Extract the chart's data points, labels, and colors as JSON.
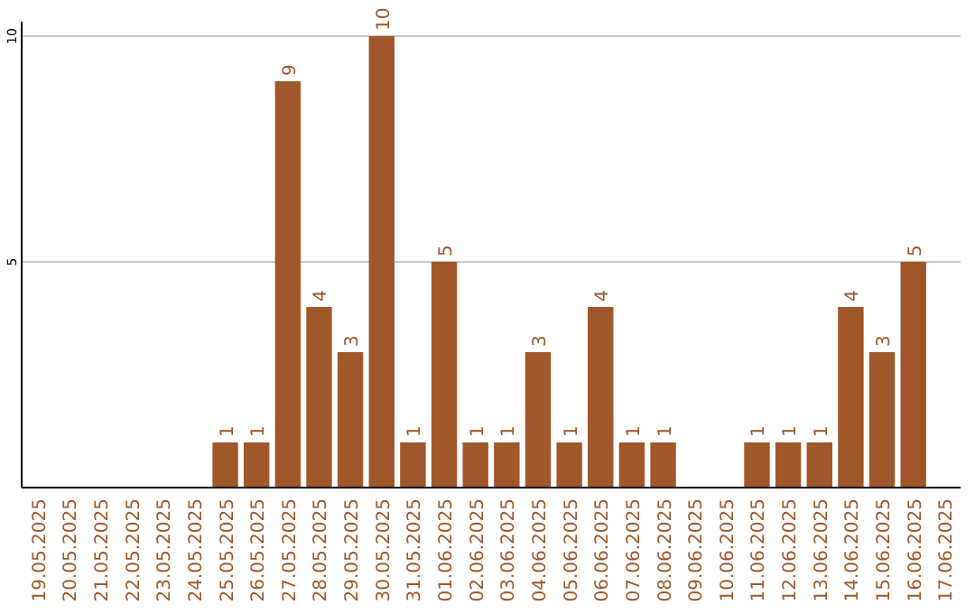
{
  "chart_data": {
    "type": "bar",
    "categories": [
      "19.05.2025",
      "20.05.2025",
      "21.05.2025",
      "22.05.2025",
      "23.05.2025",
      "24.05.2025",
      "25.05.2025",
      "26.05.2025",
      "27.05.2025",
      "28.05.2025",
      "29.05.2025",
      "30.05.2025",
      "31.05.2025",
      "01.06.2025",
      "02.06.2025",
      "03.06.2025",
      "04.06.2025",
      "05.06.2025",
      "06.06.2025",
      "07.06.2025",
      "08.06.2025",
      "09.06.2025",
      "10.06.2025",
      "11.06.2025",
      "12.06.2025",
      "13.06.2025",
      "14.06.2025",
      "15.06.2025",
      "16.06.2025",
      "17.06.2025"
    ],
    "values": [
      0,
      0,
      0,
      0,
      0,
      0,
      1,
      1,
      9,
      4,
      3,
      10,
      1,
      5,
      1,
      1,
      3,
      1,
      4,
      1,
      1,
      0,
      0,
      1,
      1,
      1,
      4,
      3,
      5,
      0
    ],
    "value_labels": [
      null,
      null,
      null,
      null,
      null,
      null,
      "1",
      "1",
      "9",
      "4",
      "3",
      "10",
      "1",
      "5",
      "1",
      "1",
      "3",
      "1",
      "4",
      "1",
      "1",
      null,
      null,
      "1",
      "1",
      "1",
      "4",
      "3",
      "5",
      null
    ],
    "color": "#a0582a",
    "ylim": [
      0,
      10
    ],
    "yticks": [
      5,
      10
    ],
    "grid": "y"
  }
}
